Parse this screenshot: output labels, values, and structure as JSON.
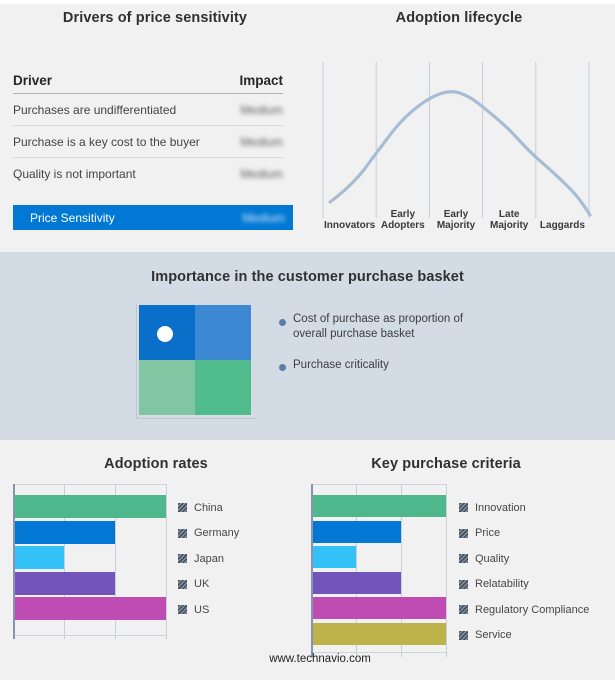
{
  "footer": {
    "url": "www.technavio.com"
  },
  "colors": {
    "page_bg": "#f1f1f2",
    "band_bg": "#d3dce5",
    "accent_blue": "#0078d4",
    "curve": "#a8bcd3",
    "legend_bullet": "#5e7ca6"
  },
  "chart_data": [
    {
      "id": "drivers-of-price-sensitivity",
      "type": "table",
      "title": "Drivers of price sensitivity",
      "columns": [
        "Driver",
        "Impact"
      ],
      "rows": [
        {
          "driver": "Purchases are undifferentiated",
          "impact": "Medium",
          "impact_blurred": true
        },
        {
          "driver": "Purchase is a key cost to the buyer",
          "impact": "Medium",
          "impact_blurred": true
        },
        {
          "driver": "Quality is not important",
          "impact": "Medium",
          "impact_blurred": true
        }
      ],
      "highlight": {
        "driver": "Price Sensitivity",
        "impact": "Medium",
        "impact_blurred": true,
        "row_color": "#0078d4"
      }
    },
    {
      "id": "adoption-lifecycle",
      "type": "line",
      "title": "Adoption lifecycle",
      "categories": [
        "Innovators",
        "Early Adopters",
        "Early Majority",
        "Late Majority",
        "Laggards"
      ],
      "description": "Bell-shaped adoption curve peaking within Early Majority; no y-axis values shown",
      "curve_color": "#a8bcd3",
      "points_pct": [
        [
          5.3,
          83.7
        ],
        [
          13.3,
          73.8
        ],
        [
          22.8,
          52.3
        ],
        [
          30.9,
          34.9
        ],
        [
          40.4,
          22.7
        ],
        [
          48.1,
          18.6
        ],
        [
          54.4,
          22.7
        ],
        [
          58.9,
          28.5
        ],
        [
          67.4,
          40.1
        ],
        [
          75.4,
          54.7
        ],
        [
          83.5,
          66.3
        ],
        [
          91.9,
          79.7
        ],
        [
          96.5,
          91.3
        ]
      ]
    },
    {
      "id": "importance-in-customer-purchase-basket",
      "type": "other",
      "title": "Importance in the customer purchase basket",
      "quadrant_colors": {
        "top_left": "#0a6fc8",
        "top_right": "#3d88d2",
        "bottom_left": "#80c6a2",
        "bottom_right": "#50bc8b"
      },
      "marker": {
        "quadrant": "top_left",
        "color": "#ffffff"
      },
      "legend": [
        "Cost of purchase as proportion of overall purchase basket",
        "Purchase criticality"
      ]
    },
    {
      "id": "adoption-rates",
      "type": "bar",
      "title": "Adoption rates",
      "orientation": "horizontal",
      "categories": [
        "China",
        "Germany",
        "Japan",
        "UK",
        "US"
      ],
      "values": [
        3,
        2,
        1,
        2,
        3
      ],
      "xlim": [
        0,
        3
      ],
      "axis_note": "x-axis unlabeled; values estimated in gridline units",
      "legend_position": "right",
      "bar_colors": [
        "#4eb78b",
        "#0277d4",
        "#33c1f8",
        "#7254ba",
        "#bf4cb3"
      ]
    },
    {
      "id": "key-purchase-criteria",
      "type": "bar",
      "title": "Key purchase criteria",
      "orientation": "horizontal",
      "categories": [
        "Innovation",
        "Price",
        "Quality",
        "Relatability",
        "Regulatory Compliance",
        "Service"
      ],
      "values": [
        3,
        2,
        1,
        2,
        3,
        3
      ],
      "xlim": [
        0,
        3
      ],
      "axis_note": "x-axis unlabeled; values estimated in gridline units",
      "legend_position": "right",
      "bar_colors": [
        "#4eb78b",
        "#0277d4",
        "#33c1f8",
        "#7254ba",
        "#bf4cb3",
        "#bdb34a"
      ]
    }
  ]
}
